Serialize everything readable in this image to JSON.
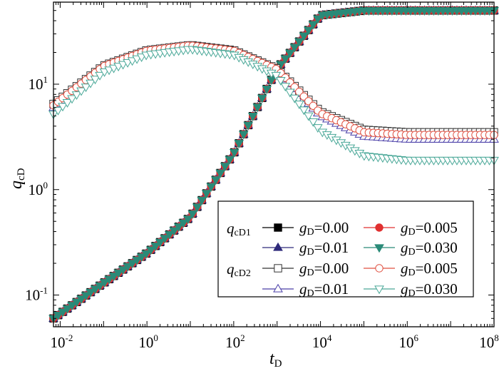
{
  "chart_data": {
    "type": "line",
    "x_scale": "log",
    "y_scale": "log",
    "xlim": [
      0.007,
      100000000
    ],
    "ylim": [
      0.05,
      60
    ],
    "x_ticks": [
      {
        "value": 0.01,
        "base": "10",
        "exp": "-2"
      },
      {
        "value": 1,
        "base": "10",
        "exp": "0"
      },
      {
        "value": 100,
        "base": "10",
        "exp": "2"
      },
      {
        "value": 10000,
        "base": "10",
        "exp": "4"
      },
      {
        "value": 1000000,
        "base": "10",
        "exp": "6"
      },
      {
        "value": 100000000,
        "base": "10",
        "exp": "8"
      }
    ],
    "y_ticks": [
      {
        "value": 0.1,
        "base": "10",
        "exp": "-1"
      },
      {
        "value": 1,
        "base": "10",
        "exp": "0"
      },
      {
        "value": 10,
        "base": "10",
        "exp": "1"
      }
    ],
    "xlabel": {
      "main": "t",
      "sub": "D"
    },
    "ylabel": {
      "main": "q",
      "sub": "cD"
    },
    "grid": false,
    "legend_position": "bottom-right",
    "legend": {
      "group1": {
        "main": "q",
        "sub": "cD1"
      },
      "group2": {
        "main": "q",
        "sub": "cD2"
      },
      "param": {
        "main": "g",
        "sub": "D"
      }
    },
    "series": [
      {
        "group": "qcD1",
        "param_value": "=0.00",
        "color": "#000000",
        "marker": "square-filled",
        "x": [
          0.007,
          0.1,
          1,
          10,
          100,
          1000,
          10000,
          100000,
          1000000,
          100000000
        ],
        "y": [
          0.06,
          0.13,
          0.25,
          0.55,
          2.2,
          14,
          45,
          50,
          50,
          50
        ]
      },
      {
        "group": "qcD1",
        "param_value": "=0.01",
        "color": "#2e2a7a",
        "marker": "triangle-up-filled",
        "x": [
          0.007,
          0.1,
          1,
          10,
          100,
          1000,
          10000,
          100000,
          1000000,
          100000000
        ],
        "y": [
          0.06,
          0.13,
          0.25,
          0.55,
          2.2,
          14,
          45,
          50,
          50,
          50
        ]
      },
      {
        "group": "qcD1",
        "param_value": "=0.005",
        "color": "#e03030",
        "marker": "circle-filled",
        "x": [
          0.007,
          0.1,
          1,
          10,
          100,
          1000,
          10000,
          100000,
          1000000,
          100000000
        ],
        "y": [
          0.06,
          0.13,
          0.25,
          0.55,
          2.2,
          14,
          45,
          50,
          50,
          50
        ]
      },
      {
        "group": "qcD1",
        "param_value": "=0.030",
        "color": "#2a8a78",
        "marker": "triangle-down-filled",
        "x": [
          0.007,
          0.1,
          1,
          10,
          100,
          1000,
          10000,
          100000,
          1000000,
          100000000
        ],
        "y": [
          0.06,
          0.13,
          0.25,
          0.55,
          2.2,
          14,
          45,
          50,
          50,
          50
        ]
      },
      {
        "group": "qcD2",
        "param_value": "=0.00",
        "color": "#333333",
        "marker": "square-open",
        "x": [
          0.007,
          0.1,
          1,
          10,
          100,
          1000,
          10000,
          100000,
          1000000,
          100000000
        ],
        "y": [
          6.5,
          15,
          21,
          23.5,
          21,
          14,
          5.5,
          3.7,
          3.5,
          3.5
        ]
      },
      {
        "group": "qcD2",
        "param_value": "=0.01",
        "color": "#4a3fa8",
        "marker": "triangle-up-open",
        "x": [
          0.007,
          0.1,
          1,
          10,
          100,
          1000,
          10000,
          100000,
          1000000,
          100000000
        ],
        "y": [
          6,
          14.5,
          20.5,
          23,
          20.5,
          13.5,
          5,
          3.2,
          3.0,
          3.0
        ]
      },
      {
        "group": "qcD2",
        "param_value": "=0.005",
        "color": "#e05040",
        "marker": "circle-open",
        "x": [
          0.007,
          0.1,
          1,
          10,
          100,
          1000,
          10000,
          100000,
          1000000,
          100000000
        ],
        "y": [
          6.3,
          14.8,
          20.8,
          23.3,
          20.8,
          13.8,
          5.3,
          3.5,
          3.3,
          3.3
        ]
      },
      {
        "group": "qcD2",
        "param_value": "=0.030",
        "color": "#4aa898",
        "marker": "triangle-down-open",
        "x": [
          0.007,
          0.1,
          1,
          10,
          100,
          1000,
          10000,
          100000,
          1000000,
          100000000
        ],
        "y": [
          5.2,
          13,
          19,
          21.5,
          19,
          12,
          3.6,
          2.1,
          1.9,
          1.9
        ]
      }
    ]
  }
}
